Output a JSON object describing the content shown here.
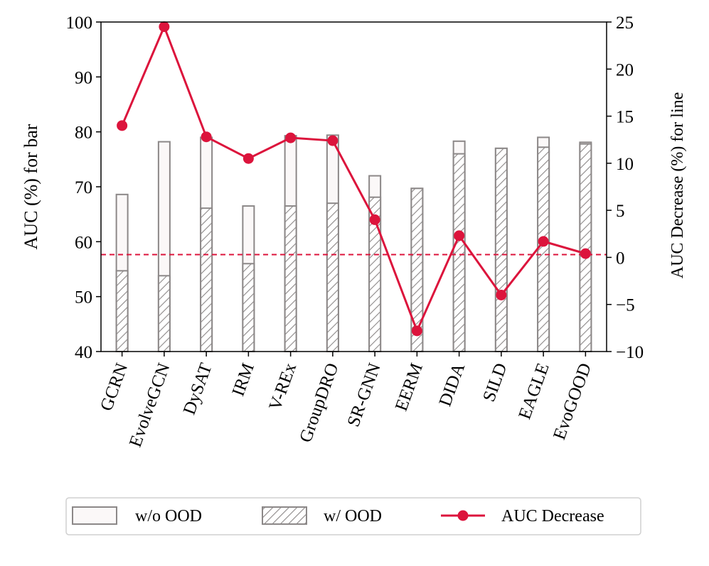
{
  "chart_data": {
    "type": "bar",
    "categories": [
      "GCRN",
      "EvolveGCN",
      "DySAT",
      "IRM",
      "V-REx",
      "GroupDRO",
      "SR-GNN",
      "EERM",
      "DIDA",
      "SILD",
      "EAGLE",
      "EvoGOOD"
    ],
    "series": [
      {
        "name": "w/o OOD",
        "axis": "left",
        "kind": "bar",
        "values": [
          68.6,
          78.2,
          79.0,
          66.5,
          79.3,
          79.4,
          72.0,
          69.7,
          78.3,
          77.0,
          79.0,
          78.1
        ]
      },
      {
        "name": "w/ OOD",
        "axis": "left",
        "kind": "bar-hatched",
        "values": [
          54.7,
          53.8,
          66.1,
          56.0,
          66.5,
          67.0,
          68.1,
          69.7,
          76.0,
          77.0,
          77.2,
          77.8
        ]
      },
      {
        "name": "AUC Decrease",
        "axis": "right",
        "kind": "line",
        "values": [
          14.0,
          24.5,
          12.8,
          10.5,
          12.7,
          12.4,
          4.0,
          -7.8,
          2.3,
          -4.0,
          1.7,
          0.4
        ]
      }
    ],
    "reference_line": {
      "axis": "right",
      "value": 0.3
    },
    "ylabel": "AUC (%) for bar",
    "y2label": "AUC Decrease (%) for line",
    "ylim": [
      40,
      100
    ],
    "y2lim": [
      -10,
      25
    ],
    "yticks": [
      "40",
      "50",
      "60",
      "70",
      "80",
      "90",
      "100"
    ],
    "y2ticks": [
      "−10",
      "−5",
      "0",
      "5",
      "10",
      "15",
      "20",
      "25"
    ],
    "legend": {
      "position": "bottom",
      "entries": [
        "w/o OOD",
        "w/ OOD",
        "AUC Decrease"
      ]
    },
    "colors": {
      "bar_edge": "#8c8888",
      "bar_fill": "#fbf8f8",
      "hatch": "#8c8888",
      "line": "#dc143c",
      "reference": "#dc143c"
    }
  }
}
